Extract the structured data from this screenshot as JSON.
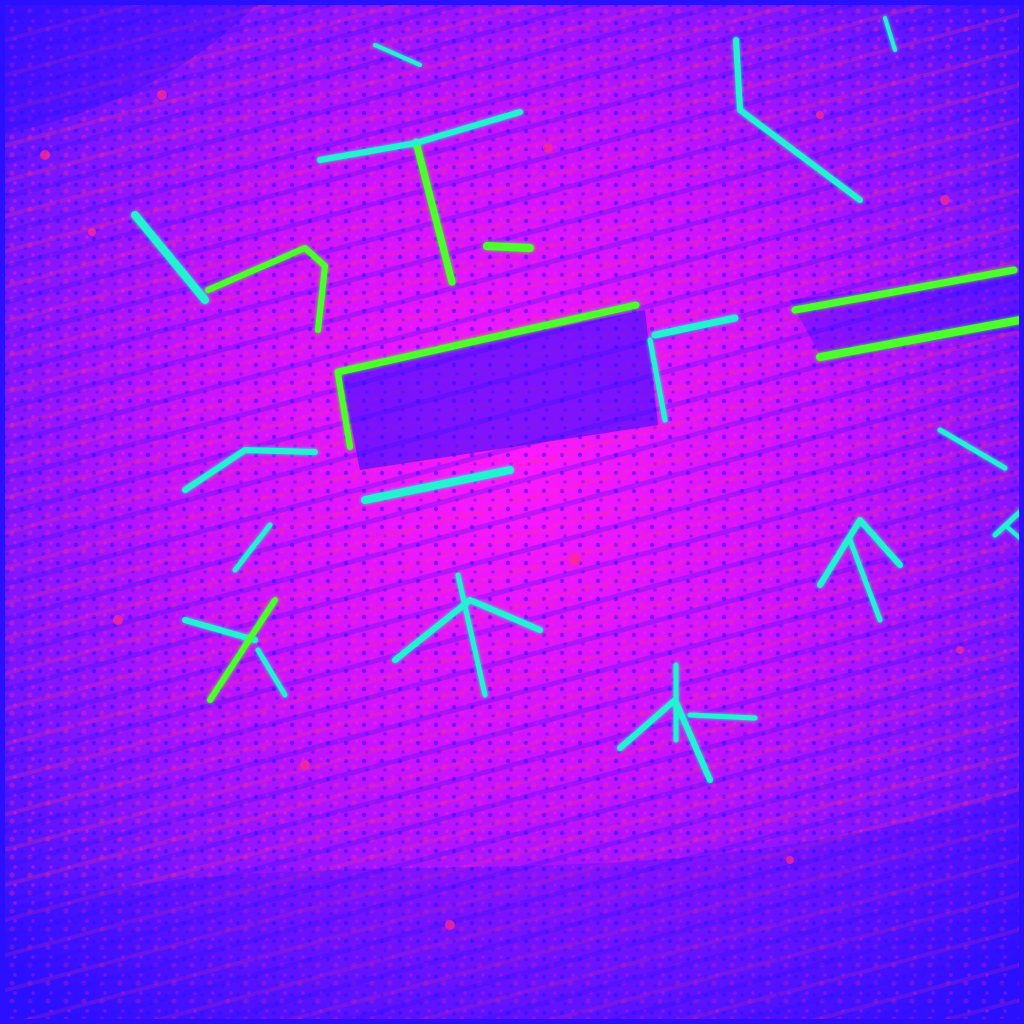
{
  "image": {
    "kind": "false-color edge map",
    "palette": {
      "background_blue": "#2b10ff",
      "field_magenta": "#ff1aff",
      "hot_pink": "#ff2a8a",
      "edge_cyan": "#22f2d2",
      "edge_green": "#4dff2a"
    }
  }
}
